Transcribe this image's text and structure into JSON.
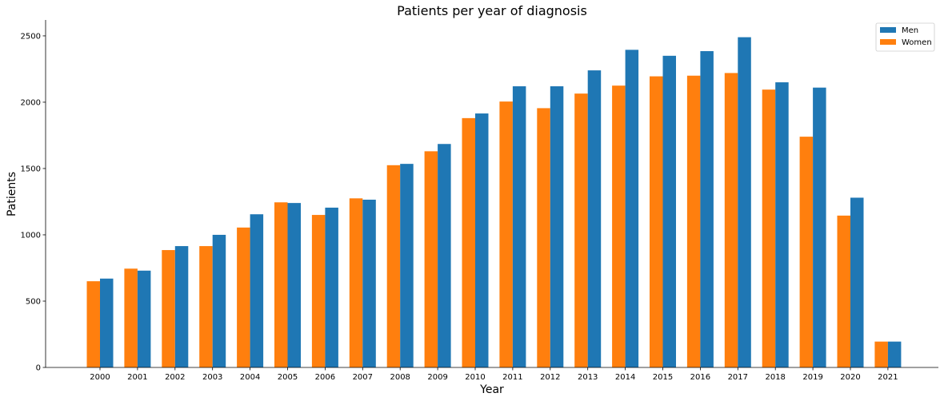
{
  "chart_data": {
    "type": "bar",
    "title": "Patients per year of diagnosis",
    "xlabel": "Year",
    "ylabel": "Patients",
    "ylim": [
      0,
      2620
    ],
    "yticks": [
      0,
      500,
      1000,
      1500,
      2000,
      2500
    ],
    "categories": [
      "2000",
      "2001",
      "2002",
      "2003",
      "2004",
      "2005",
      "2006",
      "2007",
      "2008",
      "2009",
      "2010",
      "2011",
      "2012",
      "2013",
      "2014",
      "2015",
      "2016",
      "2017",
      "2018",
      "2019",
      "2020",
      "2021"
    ],
    "series": [
      {
        "name": "Women",
        "color": "#ff7f0e",
        "values": [
          650,
          745,
          885,
          915,
          1055,
          1245,
          1150,
          1275,
          1525,
          1630,
          1880,
          2005,
          1955,
          2065,
          2125,
          2195,
          2200,
          2220,
          2095,
          1740,
          1145,
          195
        ]
      },
      {
        "name": "Men",
        "color": "#1f77b4",
        "values": [
          670,
          730,
          915,
          1000,
          1155,
          1240,
          1205,
          1265,
          1535,
          1685,
          1915,
          2120,
          2120,
          2240,
          2395,
          2350,
          2385,
          2490,
          2150,
          2110,
          1280,
          195
        ]
      }
    ],
    "legend": {
      "position": "top-right",
      "entries": [
        "Men",
        "Women"
      ]
    },
    "grid": false
  }
}
